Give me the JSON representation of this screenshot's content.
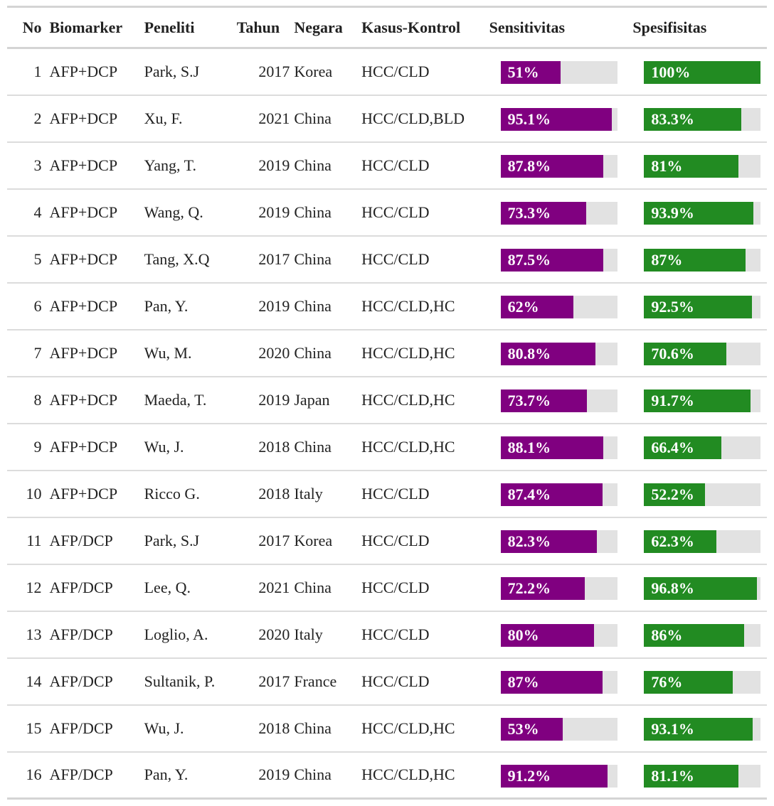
{
  "chart_data": {
    "type": "table",
    "columns": [
      "No",
      "Biomarker",
      "Peneliti",
      "Tahun",
      "Negara",
      "Kasus-Kontrol",
      "Sensitivitas",
      "Spesifisitas"
    ],
    "bar_colors": {
      "sensitivitas": "#800080",
      "spesifisitas": "#228b22",
      "track": "#e2e2e2"
    },
    "rows": [
      {
        "no": "1",
        "biomarker": "AFP+DCP",
        "peneliti": "Park, S.J",
        "tahun": "2017",
        "negara": "Korea",
        "kasus": "HCC/CLD",
        "sens": 51,
        "sens_label": "51%",
        "spec": 100,
        "spec_label": "100%"
      },
      {
        "no": "2",
        "biomarker": "AFP+DCP",
        "peneliti": "Xu, F.",
        "tahun": "2021",
        "negara": "China",
        "kasus": "HCC/CLD,BLD",
        "sens": 95.1,
        "sens_label": "95.1%",
        "spec": 83.3,
        "spec_label": "83.3%"
      },
      {
        "no": "3",
        "biomarker": "AFP+DCP",
        "peneliti": "Yang, T.",
        "tahun": "2019",
        "negara": "China",
        "kasus": "HCC/CLD",
        "sens": 87.8,
        "sens_label": "87.8%",
        "spec": 81,
        "spec_label": "81%"
      },
      {
        "no": "4",
        "biomarker": "AFP+DCP",
        "peneliti": "Wang, Q.",
        "tahun": "2019",
        "negara": "China",
        "kasus": "HCC/CLD",
        "sens": 73.3,
        "sens_label": "73.3%",
        "spec": 93.9,
        "spec_label": "93.9%"
      },
      {
        "no": "5",
        "biomarker": "AFP+DCP",
        "peneliti": "Tang, X.Q",
        "tahun": "2017",
        "negara": "China",
        "kasus": "HCC/CLD",
        "sens": 87.5,
        "sens_label": "87.5%",
        "spec": 87,
        "spec_label": "87%"
      },
      {
        "no": "6",
        "biomarker": "AFP+DCP",
        "peneliti": "Pan, Y.",
        "tahun": "2019",
        "negara": "China",
        "kasus": "HCC/CLD,HC",
        "sens": 62,
        "sens_label": "62%",
        "spec": 92.5,
        "spec_label": "92.5%"
      },
      {
        "no": "7",
        "biomarker": "AFP+DCP",
        "peneliti": "Wu, M.",
        "tahun": "2020",
        "negara": "China",
        "kasus": "HCC/CLD,HC",
        "sens": 80.8,
        "sens_label": "80.8%",
        "spec": 70.6,
        "spec_label": "70.6%"
      },
      {
        "no": "8",
        "biomarker": "AFP+DCP",
        "peneliti": "Maeda, T.",
        "tahun": "2019",
        "negara": "Japan",
        "kasus": "HCC/CLD,HC",
        "sens": 73.7,
        "sens_label": "73.7%",
        "spec": 91.7,
        "spec_label": "91.7%"
      },
      {
        "no": "9",
        "biomarker": "AFP+DCP",
        "peneliti": "Wu, J.",
        "tahun": "2018",
        "negara": "China",
        "kasus": "HCC/CLD,HC",
        "sens": 88.1,
        "sens_label": "88.1%",
        "spec": 66.4,
        "spec_label": "66.4%"
      },
      {
        "no": "10",
        "biomarker": "AFP+DCP",
        "peneliti": "Ricco G.",
        "tahun": "2018",
        "negara": "Italy",
        "kasus": "HCC/CLD",
        "sens": 87.4,
        "sens_label": "87.4%",
        "spec": 52.2,
        "spec_label": "52.2%"
      },
      {
        "no": "11",
        "biomarker": "AFP/DCP",
        "peneliti": "Park, S.J",
        "tahun": "2017",
        "negara": "Korea",
        "kasus": "HCC/CLD",
        "sens": 82.3,
        "sens_label": "82.3%",
        "spec": 62.3,
        "spec_label": "62.3%"
      },
      {
        "no": "12",
        "biomarker": "AFP/DCP",
        "peneliti": "Lee, Q.",
        "tahun": "2021",
        "negara": "China",
        "kasus": "HCC/CLD",
        "sens": 72.2,
        "sens_label": "72.2%",
        "spec": 96.8,
        "spec_label": "96.8%"
      },
      {
        "no": "13",
        "biomarker": "AFP/DCP",
        "peneliti": "Loglio, A.",
        "tahun": "2020",
        "negara": "Italy",
        "kasus": "HCC/CLD",
        "sens": 80,
        "sens_label": "80%",
        "spec": 86,
        "spec_label": "86%"
      },
      {
        "no": "14",
        "biomarker": "AFP/DCP",
        "peneliti": "Sultanik, P.",
        "tahun": "2017",
        "negara": "France",
        "kasus": "HCC/CLD",
        "sens": 87,
        "sens_label": "87%",
        "spec": 76,
        "spec_label": "76%"
      },
      {
        "no": "15",
        "biomarker": "AFP/DCP",
        "peneliti": "Wu, J.",
        "tahun": "2018",
        "negara": "China",
        "kasus": "HCC/CLD,HC",
        "sens": 53,
        "sens_label": "53%",
        "spec": 93.1,
        "spec_label": "93.1%"
      },
      {
        "no": "16",
        "biomarker": "AFP/DCP",
        "peneliti": "Pan, Y.",
        "tahun": "2019",
        "negara": "China",
        "kasus": "HCC/CLD,HC",
        "sens": 91.2,
        "sens_label": "91.2%",
        "spec": 81.1,
        "spec_label": "81.1%"
      }
    ]
  }
}
